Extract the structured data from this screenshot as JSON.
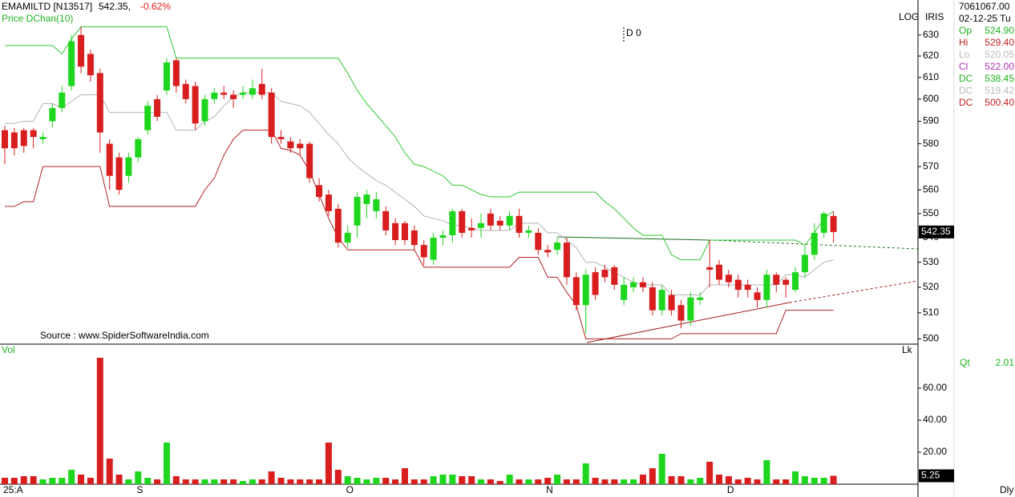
{
  "header": {
    "symbol": "EMAMILTD [N13517]",
    "price": "542.35,",
    "change": "-0.62%",
    "indicator": "Price  DChan(10)"
  },
  "source": "Source : www.SpiderSoftwareIndia.com",
  "scale_labels": [
    "LOG",
    "IRIS"
  ],
  "cursor_label": "D 0",
  "info": {
    "volume": "7061067.00",
    "date": "02-12-25 Tu",
    "rows": [
      [
        "Op",
        "524.90"
      ],
      [
        "Hi",
        "529.40"
      ],
      [
        "Lo",
        "520.05"
      ],
      [
        "Cl",
        "522.00"
      ],
      [
        "DC",
        "538.45"
      ],
      [
        "DC",
        "519.42"
      ],
      [
        "DC",
        "500.40"
      ]
    ]
  },
  "chart_data": [
    {
      "type": "candlestick",
      "categories": [
        "25:A",
        null,
        null,
        null,
        null,
        null,
        null,
        null,
        null,
        null,
        null,
        null,
        null,
        null,
        "S",
        null,
        null,
        null,
        null,
        null,
        null,
        null,
        null,
        null,
        null,
        null,
        null,
        null,
        null,
        null,
        null,
        null,
        null,
        null,
        null,
        null,
        "O",
        null,
        null,
        null,
        null,
        null,
        null,
        null,
        null,
        null,
        null,
        null,
        null,
        null,
        null,
        null,
        null,
        null,
        null,
        null,
        null,
        "N",
        null,
        null,
        null,
        null,
        null,
        null,
        null,
        null,
        null,
        null,
        null,
        null,
        null,
        null,
        null,
        null,
        null,
        null,
        "D",
        null,
        null,
        null,
        null,
        null,
        null,
        null,
        null,
        null,
        null,
        null
      ],
      "open": [
        586,
        585,
        586,
        586,
        582,
        590,
        596,
        606,
        630,
        621,
        612,
        580,
        574,
        566,
        574,
        586,
        600,
        604,
        618,
        607,
        606,
        590,
        600,
        603,
        602,
        602,
        602,
        607,
        603,
        583,
        581,
        580,
        580,
        562,
        558,
        552,
        538,
        545,
        554,
        551,
        551,
        546,
        546,
        543,
        537,
        531,
        540,
        541,
        551,
        544,
        544,
        550,
        547,
        545,
        549,
        542,
        542,
        535,
        535,
        538,
        524,
        513,
        526,
        527,
        528,
        515,
        520,
        522,
        520,
        511,
        517,
        513,
        507,
        515,
        528,
        529,
        525,
        523,
        521,
        518,
        515,
        525,
        523,
        519,
        526,
        533,
        542,
        549
      ],
      "high": [
        588,
        587,
        587,
        587,
        585,
        598,
        606,
        630,
        634,
        623,
        614,
        582,
        576,
        576,
        583,
        599,
        602,
        619,
        619,
        609,
        608,
        602,
        605,
        606,
        604,
        606,
        609,
        614,
        605,
        586,
        583,
        582,
        581,
        565,
        560,
        554,
        545,
        559,
        560,
        559,
        553,
        548,
        547,
        545,
        539,
        542,
        543,
        552,
        552,
        548,
        550,
        552,
        549,
        551,
        552,
        545,
        544,
        537,
        540,
        540,
        526,
        527,
        528,
        529,
        529,
        524,
        524,
        524,
        522,
        521,
        519,
        515,
        518,
        518,
        539,
        531,
        527,
        525,
        523,
        520,
        527,
        526,
        524,
        528,
        537,
        546,
        551,
        551
      ],
      "low": [
        571,
        575,
        576,
        578,
        580,
        587,
        594,
        604,
        612,
        608,
        576,
        560,
        558,
        563,
        572,
        584,
        590,
        602,
        603,
        598,
        586,
        588,
        598,
        600,
        596,
        600,
        600,
        600,
        580,
        580,
        576,
        575,
        563,
        555,
        549,
        536,
        536,
        540,
        548,
        548,
        541,
        537,
        537,
        535,
        529,
        529,
        537,
        538,
        540,
        540,
        540,
        543,
        543,
        543,
        540,
        540,
        533,
        532,
        533,
        521,
        511,
        502,
        515,
        522,
        519,
        513,
        518,
        518,
        509,
        509,
        509,
        504,
        505,
        513,
        520,
        521,
        520,
        516,
        516,
        512,
        512,
        518,
        516,
        518,
        524,
        531,
        540,
        538
      ],
      "close": [
        578,
        578,
        579,
        583,
        583,
        596,
        603,
        627,
        615,
        611,
        585,
        566,
        560,
        574,
        582,
        597,
        592,
        617,
        606,
        600,
        589,
        600,
        603,
        602,
        600,
        603,
        605,
        602,
        583,
        582,
        578,
        578,
        565,
        557,
        551,
        538,
        542,
        557,
        558,
        556,
        543,
        539,
        539,
        537,
        532,
        540,
        541,
        551,
        542,
        543,
        546,
        545,
        545,
        549,
        542,
        543,
        535,
        534,
        538,
        524,
        513,
        525,
        517,
        524,
        521,
        521,
        522,
        520,
        511,
        519,
        511,
        507,
        516,
        516,
        527,
        523,
        522,
        519,
        519,
        515,
        525,
        521,
        521,
        526,
        533,
        542,
        550,
        542.35
      ],
      "up_color": "#1ed61e",
      "down_color": "#d81e1e",
      "channels": [
        {
          "color": "#2ec92e",
          "values": [
            625,
            625,
            625,
            625,
            625,
            625,
            621,
            628,
            634,
            634,
            634,
            634,
            634,
            634,
            634,
            634,
            634,
            634,
            619,
            619,
            619,
            619,
            619,
            619,
            619,
            619,
            619,
            619,
            619,
            619,
            619,
            619,
            619,
            619,
            619,
            619,
            612,
            604,
            598,
            593,
            588,
            583,
            576,
            571,
            570,
            568,
            566,
            562,
            562,
            560,
            558,
            557,
            557,
            557,
            559,
            559,
            559,
            559,
            559,
            559,
            559,
            559,
            559,
            555,
            552,
            548,
            544,
            541,
            541,
            541,
            533,
            531,
            531,
            531,
            539,
            539,
            539,
            539,
            539,
            539,
            539,
            539,
            539,
            539,
            537,
            542,
            548,
            551
          ]
        },
        {
          "color": "#b4b4b4",
          "values": [
            589,
            589,
            590,
            590,
            598,
            598,
            596,
            599,
            602,
            602,
            602,
            594,
            594,
            594,
            594,
            594,
            594,
            594,
            586,
            586,
            586,
            590,
            592,
            597,
            601,
            603,
            603,
            603,
            603,
            599,
            598,
            597,
            594,
            589,
            584,
            580,
            574,
            570,
            567,
            564,
            562,
            559,
            556,
            553,
            549,
            548,
            547,
            545,
            545,
            544,
            543,
            543,
            543,
            543,
            546,
            546,
            546,
            542,
            542,
            539,
            536,
            530,
            530,
            528,
            526,
            524,
            522,
            521,
            521,
            521,
            517,
            517,
            517,
            517,
            521,
            521,
            521,
            521,
            521,
            521,
            521,
            521,
            525,
            525,
            524,
            527,
            530,
            531
          ]
        },
        {
          "color": "#b22222",
          "values": [
            553,
            553,
            555,
            555,
            570,
            570,
            570,
            570,
            570,
            570,
            570,
            553,
            553,
            553,
            553,
            553,
            553,
            553,
            553,
            553,
            553,
            560,
            565,
            575,
            582,
            586,
            586,
            586,
            586,
            578,
            577,
            575,
            568,
            558,
            548,
            540,
            535,
            535,
            535,
            535,
            535,
            535,
            535,
            535,
            528,
            528,
            528,
            528,
            528,
            528,
            528,
            528,
            528,
            528,
            532,
            532,
            532,
            524,
            524,
            518,
            513,
            500,
            500,
            500,
            500,
            500,
            500,
            500,
            500,
            500,
            500,
            502,
            502,
            502,
            502,
            502,
            502,
            502,
            502,
            502,
            502,
            502,
            511,
            511,
            511,
            511,
            511,
            511
          ]
        }
      ],
      "log_scale": true,
      "ylim": [
        498,
        647
      ],
      "yticks": [
        500,
        510,
        520,
        530,
        540,
        550,
        560,
        570,
        580,
        590,
        600,
        610,
        620,
        630
      ]
    },
    {
      "type": "bar",
      "title": "Vol",
      "unit": "Lk",
      "values": [
        4,
        4,
        5,
        5,
        3,
        4,
        4,
        9,
        6,
        4,
        79,
        16,
        6,
        3,
        8,
        4,
        3,
        26,
        5,
        3,
        3,
        3,
        3,
        3,
        3,
        2,
        3,
        3,
        8,
        4,
        3,
        3,
        3,
        3,
        26,
        9,
        5,
        4,
        3,
        4,
        4,
        3,
        10,
        3,
        3,
        5,
        6,
        6,
        5,
        5,
        3,
        3,
        2,
        6,
        3,
        3,
        3,
        4,
        6,
        3,
        3,
        13,
        4,
        3,
        3,
        3,
        3,
        6,
        10,
        19,
        5,
        5,
        3,
        4,
        14,
        6,
        5,
        3,
        4,
        3,
        15,
        3,
        3,
        8,
        5,
        4,
        4,
        5.25
      ],
      "ylim": [
        0,
        87.5
      ],
      "yticks": [
        {
          "value": 20,
          "label": "20.00"
        },
        {
          "value": 40,
          "label": "40.00"
        },
        {
          "value": 60,
          "label": "60.00"
        }
      ],
      "qt_label": "Qt",
      "qt_value": "2.01",
      "period": "Dly"
    }
  ]
}
